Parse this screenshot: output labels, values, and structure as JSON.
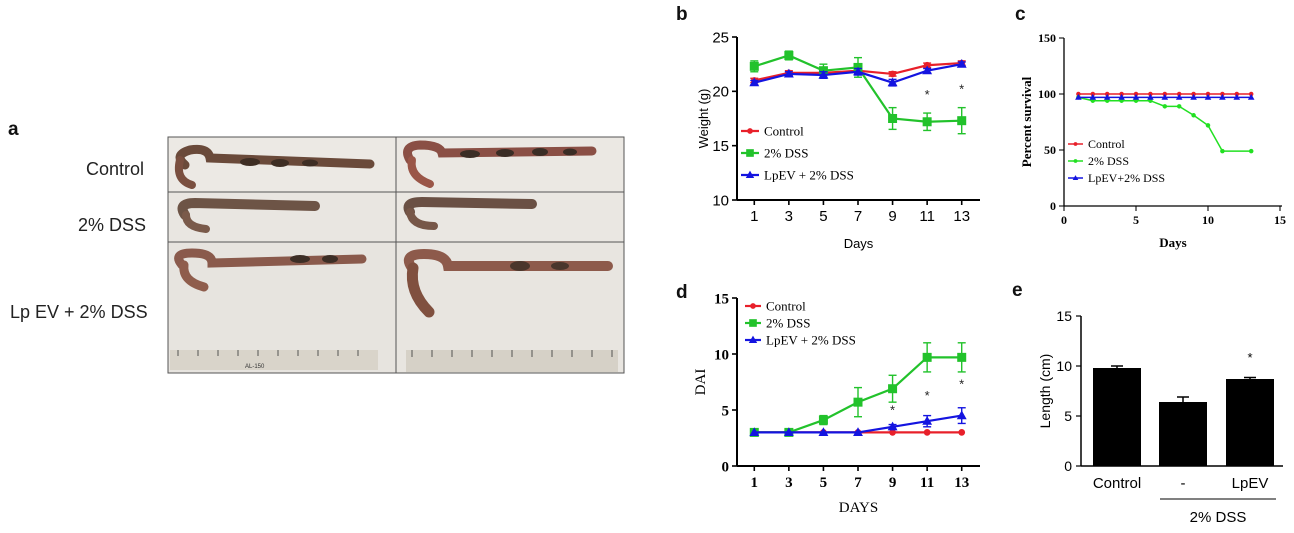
{
  "panel_a": {
    "letter": "a",
    "row_labels": [
      "Control",
      "2% DSS",
      "Lp EV + 2% DSS"
    ],
    "ruler_text": "AL-150"
  },
  "chart_data": [
    {
      "panel": "b",
      "type": "line",
      "xlabel": "Days",
      "ylabel": "Weight (g)",
      "xlim": [
        0,
        14
      ],
      "ylim": [
        10,
        25
      ],
      "xticks": [
        1,
        3,
        5,
        7,
        9,
        11,
        13
      ],
      "yticks": [
        10,
        15,
        20,
        25
      ],
      "legend_position": "center-left",
      "x": [
        1,
        3,
        5,
        7,
        9,
        11,
        13
      ],
      "series": [
        {
          "name": "Control",
          "color": "#e8202a",
          "marker": "circle",
          "values": [
            21.0,
            21.7,
            21.7,
            21.9,
            21.6,
            22.4,
            22.6
          ],
          "errors": [
            0.2,
            0.2,
            0.2,
            0.2,
            0.2,
            0.2,
            0.2
          ]
        },
        {
          "name": "2% DSS",
          "color": "#22c22b",
          "marker": "square",
          "values": [
            22.3,
            23.3,
            21.9,
            22.2,
            17.5,
            17.2,
            17.3
          ],
          "errors": [
            0.5,
            0.4,
            0.6,
            0.9,
            1.0,
            0.8,
            1.2
          ]
        },
        {
          "name": "LpEV + 2% DSS",
          "color": "#1414e0",
          "marker": "triangle",
          "values": [
            20.8,
            21.6,
            21.5,
            21.8,
            20.8,
            21.9,
            22.5
          ],
          "errors": [
            0.2,
            0.2,
            0.3,
            0.3,
            0.3,
            0.2,
            0.2
          ]
        }
      ],
      "annotations": [
        {
          "x": 11,
          "y": 19.3,
          "text": "*"
        },
        {
          "x": 13,
          "y": 19.8,
          "text": "*"
        }
      ]
    },
    {
      "panel": "c",
      "type": "line",
      "xlabel": "Days",
      "ylabel": "Percent survival",
      "xlim": [
        0,
        15
      ],
      "ylim": [
        0,
        150
      ],
      "xticks": [
        0,
        5,
        10,
        15
      ],
      "yticks": [
        0,
        50,
        100,
        150
      ],
      "legend_position": "bottom-left",
      "series": [
        {
          "name": "Control",
          "color": "#e8202a",
          "marker": "circle",
          "x": [
            1,
            2,
            3,
            4,
            5,
            6,
            7,
            8,
            9,
            10,
            11,
            12,
            13
          ],
          "values": [
            100,
            100,
            100,
            100,
            100,
            100,
            100,
            100,
            100,
            100,
            100,
            100,
            100
          ]
        },
        {
          "name": "2% DSS",
          "color": "#22e022",
          "marker": "circle",
          "x": [
            1,
            2,
            3,
            4,
            5,
            6,
            7,
            8,
            9,
            10,
            11,
            13
          ],
          "values": [
            97,
            94,
            94,
            94,
            94,
            94,
            89,
            89,
            81,
            72,
            49,
            49
          ]
        },
        {
          "name": "LpEV+2% DSS",
          "color": "#1414e0",
          "marker": "triangle",
          "x": [
            1,
            2,
            3,
            4,
            5,
            6,
            7,
            8,
            9,
            10,
            11,
            12,
            13
          ],
          "values": [
            97,
            97,
            97,
            97,
            97,
            97,
            97,
            97,
            97,
            97,
            97,
            97,
            97
          ]
        }
      ]
    },
    {
      "panel": "d",
      "type": "line",
      "xlabel": "DAYS",
      "ylabel": "DAI",
      "xlim": [
        0,
        14
      ],
      "ylim": [
        0,
        15
      ],
      "xticks": [
        1,
        3,
        5,
        7,
        9,
        11,
        13
      ],
      "yticks": [
        0,
        5,
        10,
        15
      ],
      "legend_position": "top-left",
      "x": [
        1,
        3,
        5,
        7,
        9,
        11,
        13
      ],
      "series": [
        {
          "name": "Control",
          "color": "#e8202a",
          "marker": "circle",
          "values": [
            3,
            3,
            3,
            3,
            3,
            3,
            3
          ],
          "errors": [
            0,
            0,
            0,
            0,
            0,
            0,
            0
          ]
        },
        {
          "name": "2% DSS",
          "color": "#22c22b",
          "marker": "square",
          "values": [
            3,
            3,
            4.1,
            5.7,
            6.9,
            9.7,
            9.7
          ],
          "errors": [
            0.1,
            0.1,
            0.4,
            1.3,
            1.2,
            1.3,
            1.3
          ]
        },
        {
          "name": "LpEV + 2% DSS",
          "color": "#1414e0",
          "marker": "triangle",
          "values": [
            3,
            3,
            3,
            3,
            3.5,
            4.0,
            4.5
          ],
          "errors": [
            0,
            0,
            0,
            0,
            0.2,
            0.5,
            0.7
          ]
        }
      ],
      "annotations": [
        {
          "x": 9,
          "y": 4.6,
          "text": "*"
        },
        {
          "x": 11,
          "y": 5.9,
          "text": "*"
        },
        {
          "x": 13,
          "y": 6.9,
          "text": "*"
        }
      ]
    },
    {
      "panel": "e",
      "type": "bar",
      "categories": [
        "Control",
        "-",
        "LpEV"
      ],
      "group_label": "2% DSS",
      "values": [
        9.8,
        6.4,
        8.7
      ],
      "errors": [
        0.2,
        0.5,
        0.15
      ],
      "ylabel": "Length (cm)",
      "ylim": [
        0,
        15
      ],
      "yticks": [
        0,
        5,
        10,
        15
      ],
      "bar_color": "#000000",
      "annotations": [
        {
          "category": "LpEV",
          "y": 10.4,
          "text": "*"
        }
      ]
    }
  ]
}
